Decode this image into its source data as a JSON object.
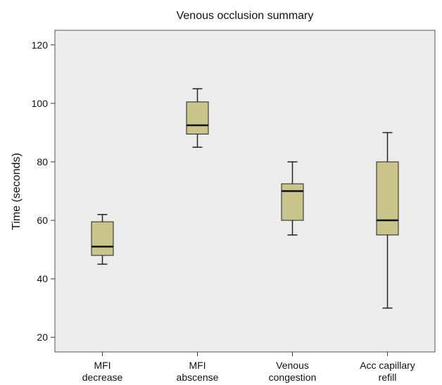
{
  "chart_data": {
    "type": "boxplot",
    "title": "Venous occlusion summary",
    "xlabel": "",
    "ylabel": "Time (seconds)",
    "ylim": [
      15,
      125
    ],
    "yticks": [
      20,
      40,
      60,
      80,
      100,
      120
    ],
    "grid": false,
    "colors": {
      "box_fill": "#c8c48a",
      "plot_bg": "#ececec",
      "stroke": "#222222"
    },
    "categories": [
      [
        "MFI",
        "decrease"
      ],
      [
        "MFI",
        "abscense"
      ],
      [
        "Venous",
        "congestion"
      ],
      [
        "Acc capillary",
        "refill"
      ]
    ],
    "boxes": [
      {
        "min": 45,
        "q1": 48,
        "median": 51,
        "q3": 59.5,
        "max": 62
      },
      {
        "min": 85,
        "q1": 89.5,
        "median": 92.5,
        "q3": 100.5,
        "max": 105
      },
      {
        "min": 55,
        "q1": 60,
        "median": 70,
        "q3": 72.5,
        "max": 80
      },
      {
        "min": 30,
        "q1": 55,
        "median": 60,
        "q3": 80,
        "max": 90
      }
    ]
  }
}
